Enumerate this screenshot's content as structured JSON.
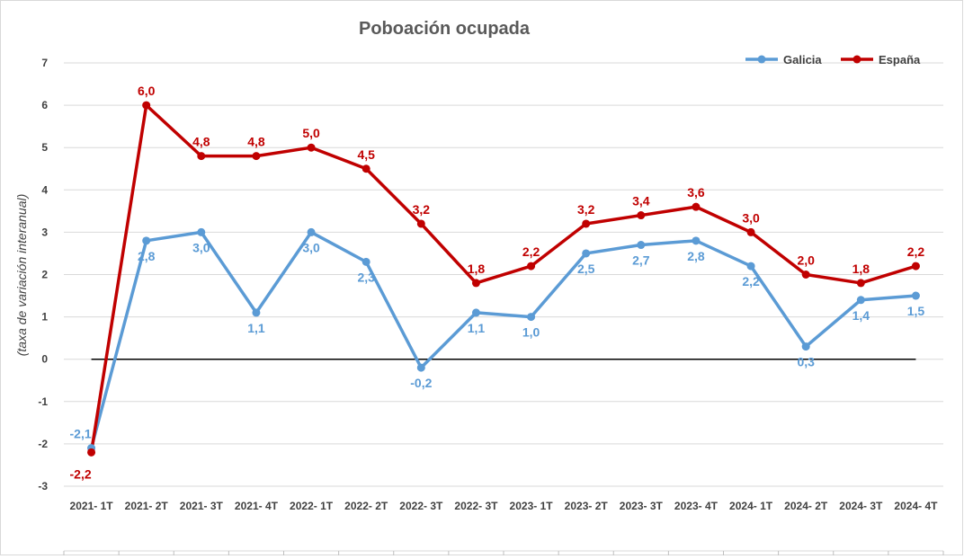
{
  "chart_data": {
    "type": "line",
    "title": "Poboación ocupada",
    "ylabel": "(taxa de variación interanual)",
    "xlabel": "",
    "ylim": [
      -3,
      7
    ],
    "yticks": [
      -3,
      -2,
      -1,
      0,
      1,
      2,
      3,
      4,
      5,
      6,
      7
    ],
    "grid": true,
    "legend_position": "top-right",
    "categories": [
      "2021- 1T",
      "2021- 2T",
      "2021- 3T",
      "2021- 4T",
      "2022- 1T",
      "2022- 2T",
      "2022- 3T",
      "2022- 3T",
      "2023- 1T",
      "2023- 2T",
      "2023- 3T",
      "2023- 4T",
      "2024- 1T",
      "2024- 2T",
      "2024- 3T",
      "2024- 4T"
    ],
    "series": [
      {
        "name": "Galicia",
        "color": "#5b9bd5",
        "values": [
          -2.1,
          2.8,
          3.0,
          1.1,
          3.0,
          2.3,
          -0.2,
          1.1,
          1.0,
          2.5,
          2.7,
          2.8,
          2.2,
          0.3,
          1.4,
          1.5
        ],
        "labels": [
          "-2,1",
          "2,8",
          "3,0",
          "1,1",
          "3,0",
          "2,3",
          "-0,2",
          "1,1",
          "1,0",
          "2,5",
          "2,7",
          "2,8",
          "2,2",
          "0,3",
          "1,4",
          "1,5"
        ]
      },
      {
        "name": "España",
        "color": "#c00000",
        "values": [
          -2.2,
          6.0,
          4.8,
          4.8,
          5.0,
          4.5,
          3.2,
          1.8,
          2.2,
          3.2,
          3.4,
          3.6,
          3.0,
          2.0,
          1.8,
          2.2
        ],
        "labels": [
          "-2,2",
          "6,0",
          "4,8",
          "4,8",
          "5,0",
          "4,5",
          "3,2",
          "1,8",
          "2,2",
          "3,2",
          "3,4",
          "3,6",
          "3,0",
          "2,0",
          "1,8",
          "2,2"
        ]
      }
    ]
  }
}
